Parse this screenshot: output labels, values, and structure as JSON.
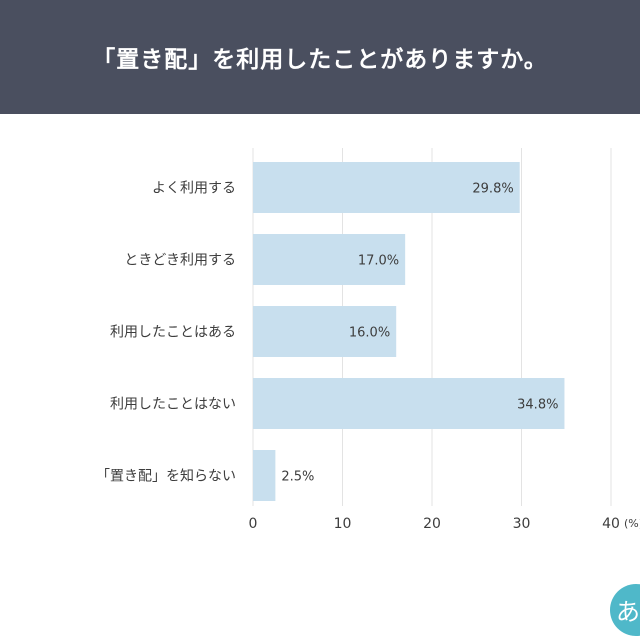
{
  "header": {
    "title": "「置き配」を利用したことがありますか。"
  },
  "chart_data": {
    "type": "bar",
    "orientation": "horizontal",
    "categories": [
      "よく利用する",
      "ときどき利用する",
      "利用したことはある",
      "利用したことはない",
      "「置き配」を知らない"
    ],
    "values": [
      29.8,
      17.0,
      16.0,
      34.8,
      2.5
    ],
    "value_labels": [
      "29.8%",
      "17.0%",
      "16.0%",
      "34.8%",
      "2.5%"
    ],
    "xticks": [
      "0",
      "10",
      "20",
      "30",
      "40"
    ],
    "xunit": "(%)",
    "xlim": [
      0,
      40
    ],
    "grid": true,
    "bar_color": "#c8dfee",
    "label_color": "#3d3d3d"
  },
  "colors": {
    "header_bg": "#4a4f5f",
    "bar": "#c8dfee",
    "grid": "#e3e3e3",
    "text": "#3d3d3d"
  },
  "logo": {
    "text": "あ"
  }
}
